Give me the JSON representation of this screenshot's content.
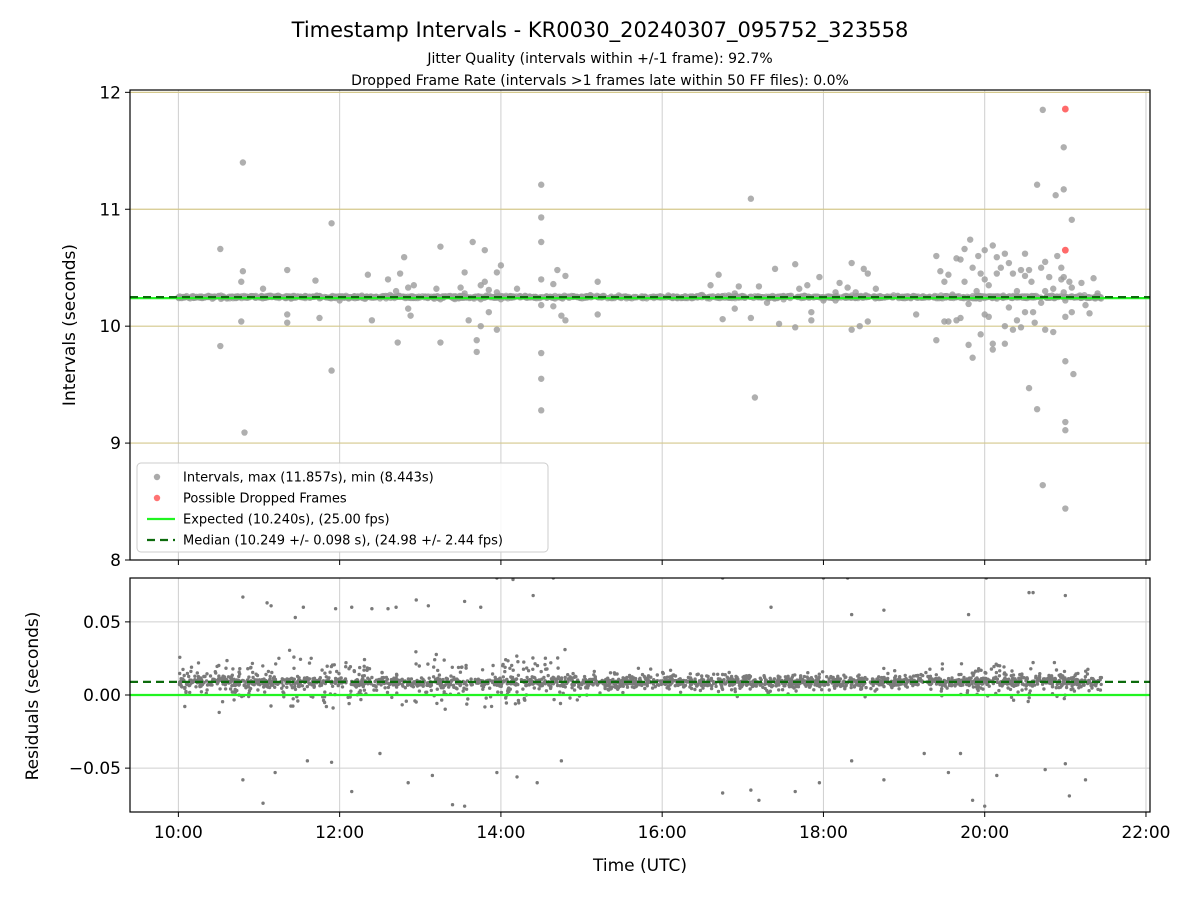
{
  "chart_data": {
    "type": "scatter",
    "title": "Timestamp Intervals - KR0030_20240307_095752_323558",
    "subtitle_lines": [
      "Jitter Quality (intervals within +/-1 frame): 92.7%",
      "Dropped Frame Rate (intervals >1 frames late within 50 FF files): 0.0%"
    ],
    "xlabel": "Time (UTC)",
    "x_units": "hours (UTC)",
    "xlim": [
      9.4,
      22.05
    ],
    "x_ticks": [
      10,
      12,
      14,
      16,
      18,
      20,
      22
    ],
    "x_tick_labels": [
      "10:00",
      "12:00",
      "14:00",
      "16:00",
      "18:00",
      "20:00",
      "22:00"
    ],
    "data_time_range": [
      10.0,
      21.45
    ],
    "grid": true,
    "expected": 10.24,
    "median": 10.249,
    "top": {
      "ylabel": "Intervals (seconds)",
      "ylim": [
        8,
        12.02
      ],
      "y_ticks": [
        8,
        9,
        10,
        11,
        12
      ],
      "y_tick_labels": [
        "8",
        "9",
        "10",
        "11",
        "12"
      ],
      "frame_lines": [
        9,
        10,
        11,
        12
      ],
      "legend_position": "lower-left",
      "outliers": [
        [
          10.52,
          10.66
        ],
        [
          10.52,
          9.83
        ],
        [
          10.8,
          11.4
        ],
        [
          10.8,
          10.47
        ],
        [
          10.78,
          10.38
        ],
        [
          10.78,
          10.04
        ],
        [
          10.82,
          9.09
        ],
        [
          11.05,
          10.32
        ],
        [
          11.15,
          10.26
        ],
        [
          11.35,
          10.48
        ],
        [
          11.35,
          10.1
        ],
        [
          11.35,
          10.03
        ],
        [
          11.75,
          10.07
        ],
        [
          11.7,
          10.39
        ],
        [
          11.9,
          10.88
        ],
        [
          11.9,
          9.62
        ],
        [
          12.0,
          10.22
        ],
        [
          12.35,
          10.44
        ],
        [
          12.4,
          10.05
        ],
        [
          12.6,
          10.4
        ],
        [
          12.7,
          10.3
        ],
        [
          12.75,
          10.45
        ],
        [
          12.75,
          10.25
        ],
        [
          12.8,
          10.59
        ],
        [
          12.85,
          10.33
        ],
        [
          12.85,
          10.15
        ],
        [
          12.72,
          9.86
        ],
        [
          12.88,
          10.09
        ],
        [
          12.92,
          10.35
        ],
        [
          13.2,
          10.32
        ],
        [
          13.25,
          10.23
        ],
        [
          13.25,
          9.86
        ],
        [
          13.25,
          10.68
        ],
        [
          13.5,
          10.33
        ],
        [
          13.55,
          10.46
        ],
        [
          13.55,
          10.28
        ],
        [
          13.6,
          10.05
        ],
        [
          13.65,
          10.72
        ],
        [
          13.7,
          9.88
        ],
        [
          13.7,
          9.78
        ],
        [
          13.75,
          10.35
        ],
        [
          13.75,
          10.23
        ],
        [
          13.75,
          10.0
        ],
        [
          13.8,
          10.65
        ],
        [
          13.8,
          10.38
        ],
        [
          13.85,
          10.31
        ],
        [
          13.85,
          10.12
        ],
        [
          13.95,
          10.46
        ],
        [
          13.95,
          10.29
        ],
        [
          13.95,
          9.97
        ],
        [
          14.0,
          10.52
        ],
        [
          14.0,
          10.23
        ],
        [
          14.2,
          10.32
        ],
        [
          14.3,
          10.26
        ],
        [
          14.5,
          11.21
        ],
        [
          14.5,
          10.93
        ],
        [
          14.5,
          10.72
        ],
        [
          14.5,
          10.4
        ],
        [
          14.5,
          10.18
        ],
        [
          14.5,
          9.77
        ],
        [
          14.5,
          9.55
        ],
        [
          14.5,
          9.28
        ],
        [
          14.65,
          10.36
        ],
        [
          14.65,
          10.17
        ],
        [
          14.7,
          10.48
        ],
        [
          14.75,
          10.09
        ],
        [
          14.8,
          10.43
        ],
        [
          14.8,
          10.05
        ],
        [
          15.2,
          10.38
        ],
        [
          15.2,
          10.1
        ],
        [
          16.6,
          10.35
        ],
        [
          16.7,
          10.44
        ],
        [
          16.75,
          10.06
        ],
        [
          16.9,
          10.28
        ],
        [
          16.9,
          10.15
        ],
        [
          16.95,
          10.34
        ],
        [
          17.1,
          11.09
        ],
        [
          17.1,
          10.07
        ],
        [
          17.15,
          9.39
        ],
        [
          17.2,
          10.34
        ],
        [
          17.3,
          10.2
        ],
        [
          17.4,
          10.49
        ],
        [
          17.45,
          10.02
        ],
        [
          17.6,
          10.26
        ],
        [
          17.65,
          10.53
        ],
        [
          17.65,
          9.99
        ],
        [
          17.7,
          10.32
        ],
        [
          17.8,
          10.35
        ],
        [
          17.85,
          10.12
        ],
        [
          17.85,
          10.05
        ],
        [
          17.95,
          10.42
        ],
        [
          18.0,
          10.22
        ],
        [
          18.15,
          10.22
        ],
        [
          18.15,
          10.29
        ],
        [
          18.2,
          10.37
        ],
        [
          18.3,
          10.33
        ],
        [
          18.35,
          10.54
        ],
        [
          18.35,
          9.97
        ],
        [
          18.4,
          10.29
        ],
        [
          18.45,
          10.0
        ],
        [
          18.5,
          10.49
        ],
        [
          18.55,
          10.45
        ],
        [
          18.55,
          10.04
        ],
        [
          18.65,
          10.32
        ],
        [
          19.15,
          10.1
        ],
        [
          19.4,
          10.6
        ],
        [
          19.4,
          9.88
        ],
        [
          19.45,
          10.47
        ],
        [
          19.5,
          10.38
        ],
        [
          19.5,
          10.04
        ],
        [
          19.55,
          10.44
        ],
        [
          19.55,
          10.04
        ],
        [
          19.6,
          10.27
        ],
        [
          19.65,
          10.58
        ],
        [
          19.65,
          10.05
        ],
        [
          19.7,
          10.57
        ],
        [
          19.7,
          10.07
        ],
        [
          19.75,
          10.38
        ],
        [
          19.75,
          10.66
        ],
        [
          19.8,
          10.19
        ],
        [
          19.8,
          9.84
        ],
        [
          19.82,
          10.74
        ],
        [
          19.85,
          10.5
        ],
        [
          19.85,
          9.73
        ],
        [
          19.9,
          10.3
        ],
        [
          19.92,
          10.6
        ],
        [
          19.95,
          10.45
        ],
        [
          19.95,
          9.93
        ],
        [
          20.0,
          10.65
        ],
        [
          20.0,
          10.4
        ],
        [
          20.0,
          10.1
        ],
        [
          20.05,
          10.35
        ],
        [
          20.05,
          10.08
        ],
        [
          20.1,
          10.69
        ],
        [
          20.1,
          9.85
        ],
        [
          20.1,
          9.8
        ],
        [
          20.15,
          10.45
        ],
        [
          20.15,
          10.59
        ],
        [
          20.2,
          10.5
        ],
        [
          20.2,
          10.25
        ],
        [
          20.25,
          10.62
        ],
        [
          20.25,
          10.0
        ],
        [
          20.25,
          9.85
        ],
        [
          20.3,
          10.54
        ],
        [
          20.3,
          10.16
        ],
        [
          20.35,
          10.45
        ],
        [
          20.35,
          9.97
        ],
        [
          20.4,
          10.3
        ],
        [
          20.4,
          10.05
        ],
        [
          20.45,
          10.48
        ],
        [
          20.45,
          9.99
        ],
        [
          20.5,
          10.62
        ],
        [
          20.5,
          10.43
        ],
        [
          20.5,
          10.12
        ],
        [
          20.55,
          10.48
        ],
        [
          20.55,
          9.47
        ],
        [
          20.58,
          10.38
        ],
        [
          20.6,
          10.12
        ],
        [
          20.62,
          10.03
        ],
        [
          20.65,
          11.21
        ],
        [
          20.65,
          9.29
        ],
        [
          20.7,
          10.5
        ],
        [
          20.7,
          10.2
        ],
        [
          20.72,
          11.85
        ],
        [
          20.72,
          8.64
        ],
        [
          20.75,
          10.55
        ],
        [
          20.75,
          10.3
        ],
        [
          20.75,
          9.97
        ],
        [
          20.8,
          10.42
        ],
        [
          20.85,
          10.32
        ],
        [
          20.85,
          9.95
        ],
        [
          20.88,
          11.12
        ],
        [
          20.9,
          10.6
        ],
        [
          20.95,
          10.4
        ],
        [
          20.95,
          10.5
        ],
        [
          20.98,
          11.53
        ],
        [
          20.98,
          11.17
        ],
        [
          20.98,
          10.42
        ],
        [
          20.98,
          10.29
        ],
        [
          21.0,
          10.22
        ],
        [
          21.0,
          10.08
        ],
        [
          21.0,
          9.7
        ],
        [
          21.0,
          9.18
        ],
        [
          21.0,
          9.11
        ],
        [
          21.0,
          8.44
        ],
        [
          21.05,
          10.38
        ],
        [
          21.08,
          10.91
        ],
        [
          21.08,
          10.33
        ],
        [
          21.08,
          10.12
        ],
        [
          21.1,
          9.59
        ],
        [
          21.15,
          10.25
        ],
        [
          21.2,
          10.37
        ],
        [
          21.25,
          10.18
        ],
        [
          21.3,
          10.11
        ],
        [
          21.35,
          10.41
        ],
        [
          21.4,
          10.28
        ]
      ],
      "dropped_frames": [
        [
          21.0,
          11.857
        ],
        [
          21.0,
          10.65
        ]
      ],
      "legend": [
        {
          "label": "Intervals, max (11.857s), min (8.443s)",
          "color": "#9b9b9b",
          "marker": "dot"
        },
        {
          "label": "Possible Dropped Frames",
          "color": "#ff5a5a",
          "marker": "dot"
        },
        {
          "label": "Expected (10.240s), (25.00 fps)",
          "color": "#21f421",
          "marker": "line"
        },
        {
          "label": "Median (10.249 +/- 0.098 s), (24.98 +/- 2.44 fps)",
          "color": "#0c6b0c",
          "marker": "dashed"
        }
      ]
    },
    "bottom": {
      "ylabel": "Residuals (seconds)",
      "ylim": [
        -0.08,
        0.08
      ],
      "y_ticks": [
        -0.05,
        0.0,
        0.05
      ],
      "y_tick_labels": [
        "−0.05",
        "0.00",
        "0.05"
      ],
      "median_residual": 0.009,
      "expected_residual": 0.0,
      "outliers": [
        [
          10.8,
          0.067
        ],
        [
          11.1,
          0.063
        ],
        [
          11.15,
          0.061
        ],
        [
          11.45,
          0.053
        ],
        [
          11.55,
          0.06
        ],
        [
          11.95,
          0.059
        ],
        [
          12.15,
          0.06
        ],
        [
          12.4,
          0.059
        ],
        [
          12.6,
          0.059
        ],
        [
          12.7,
          0.06
        ],
        [
          12.95,
          0.065
        ],
        [
          13.1,
          0.061
        ],
        [
          13.55,
          0.064
        ],
        [
          13.75,
          0.06
        ],
        [
          13.95,
          0.08
        ],
        [
          14.15,
          0.079
        ],
        [
          14.4,
          0.068
        ],
        [
          14.65,
          0.08
        ],
        [
          16.75,
          0.08
        ],
        [
          17.35,
          0.06
        ],
        [
          18.0,
          0.08
        ],
        [
          18.3,
          0.08
        ],
        [
          18.35,
          0.055
        ],
        [
          18.75,
          0.058
        ],
        [
          19.8,
          0.055
        ],
        [
          20.02,
          0.08
        ],
        [
          20.55,
          0.07
        ],
        [
          20.6,
          0.07
        ],
        [
          21.0,
          0.068
        ],
        [
          10.8,
          -0.058
        ],
        [
          11.05,
          -0.074
        ],
        [
          11.2,
          -0.053
        ],
        [
          11.6,
          -0.045
        ],
        [
          11.9,
          -0.046
        ],
        [
          12.15,
          -0.066
        ],
        [
          12.5,
          -0.04
        ],
        [
          12.85,
          -0.06
        ],
        [
          13.15,
          -0.055
        ],
        [
          13.4,
          -0.075
        ],
        [
          13.55,
          -0.076
        ],
        [
          13.95,
          -0.053
        ],
        [
          14.2,
          -0.056
        ],
        [
          14.45,
          -0.06
        ],
        [
          14.75,
          -0.045
        ],
        [
          16.75,
          -0.067
        ],
        [
          17.1,
          -0.065
        ],
        [
          17.2,
          -0.072
        ],
        [
          17.65,
          -0.066
        ],
        [
          17.95,
          -0.06
        ],
        [
          18.35,
          -0.045
        ],
        [
          18.75,
          -0.058
        ],
        [
          19.25,
          -0.04
        ],
        [
          19.55,
          -0.053
        ],
        [
          19.7,
          -0.04
        ],
        [
          19.85,
          -0.072
        ],
        [
          20.0,
          -0.076
        ],
        [
          20.15,
          -0.055
        ],
        [
          20.75,
          -0.051
        ],
        [
          21.0,
          -0.047
        ],
        [
          21.05,
          -0.069
        ],
        [
          21.25,
          -0.058
        ]
      ]
    },
    "colors": {
      "intervals": "#9b9b9b",
      "residuals": "#7a7a7a",
      "dropped": "#ff5a5a",
      "expected": "#21f421",
      "median": "#0c6b0c",
      "frame_line": "#d4c88c",
      "grid": "#cfcfcf"
    }
  }
}
